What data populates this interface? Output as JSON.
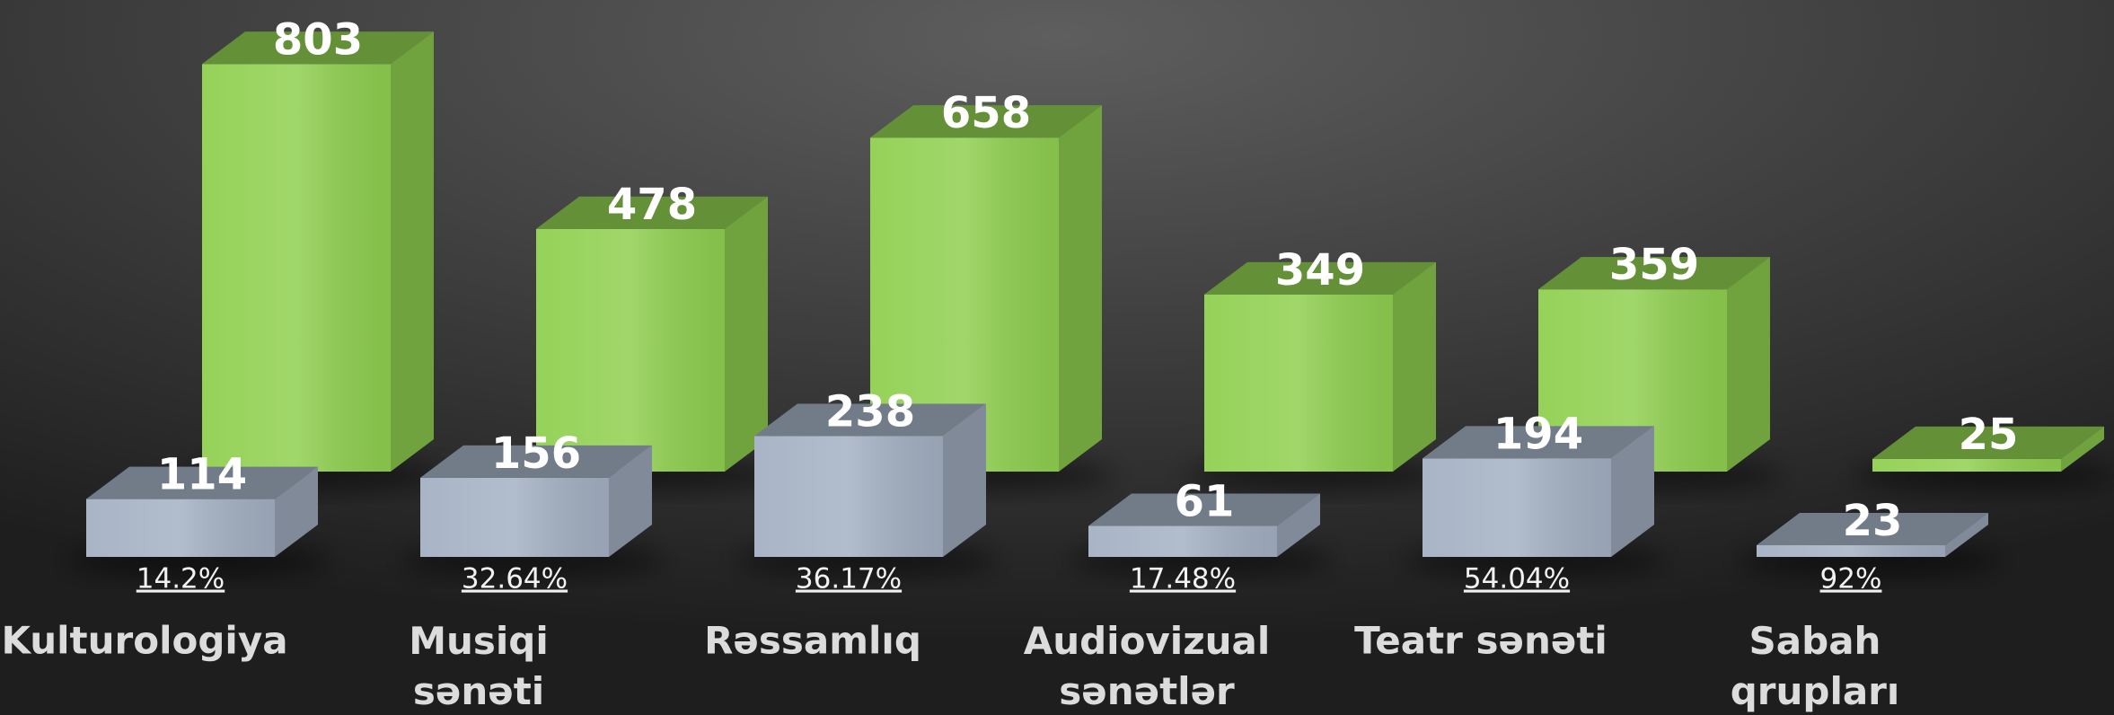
{
  "chart_data": {
    "type": "bar3d",
    "categories": [
      "Kulturologiya",
      "Musiqi sənəti",
      "Rəssamlıq",
      "Audiovizual sənətlər",
      "Teatr sənəti",
      "Sabah qrupları"
    ],
    "series": [
      {
        "color": "#90d050",
        "values": [
          803,
          478,
          658,
          349,
          359,
          25
        ]
      },
      {
        "color": "#a4b1c3",
        "values": [
          114,
          156,
          238,
          61,
          194,
          23
        ]
      }
    ],
    "ratios": {
      "values": [
        14.2,
        32.64,
        36.17,
        17.48,
        54.04,
        92
      ],
      "value_labels": [
        "14.2%",
        "32.64%",
        "36.17%",
        "17.48%",
        "54.04%",
        "92%"
      ]
    }
  }
}
